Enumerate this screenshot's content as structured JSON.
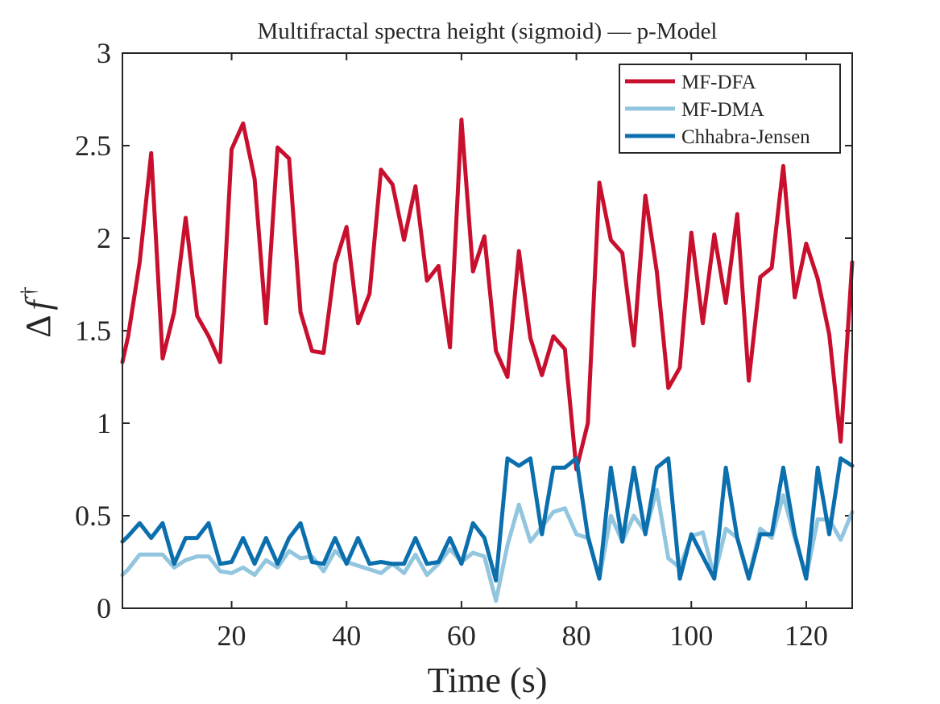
{
  "chart_data": {
    "type": "line",
    "title": "Multifractal spectra height (sigmoid) — p-Model",
    "xlabel": "Time (s)",
    "ylabel_base": "Δ",
    "ylabel_var": "f",
    "ylabel_sup": "†",
    "xlim": [
      1,
      128
    ],
    "ylim": [
      0,
      3
    ],
    "xticks": [
      20,
      40,
      60,
      80,
      100,
      120
    ],
    "yticks": [
      0,
      0.5,
      1,
      1.5,
      2,
      2.5,
      3
    ],
    "ytick_labels": [
      "0",
      "0.5",
      "1",
      "1.5",
      "2",
      "2.5",
      "3"
    ],
    "grid": false,
    "legend_position": "top-right",
    "x": [
      1,
      2,
      4,
      6,
      8,
      10,
      12,
      14,
      16,
      18,
      20,
      22,
      24,
      26,
      28,
      30,
      32,
      34,
      36,
      38,
      40,
      42,
      44,
      46,
      48,
      50,
      52,
      54,
      56,
      58,
      60,
      62,
      64,
      66,
      68,
      70,
      72,
      74,
      76,
      78,
      80,
      82,
      84,
      86,
      88,
      90,
      92,
      94,
      96,
      98,
      100,
      102,
      104,
      106,
      108,
      110,
      112,
      114,
      116,
      118,
      120,
      122,
      124,
      126,
      128
    ],
    "series": [
      {
        "name": "MF-DFA",
        "color": "#c8102e",
        "values": [
          1.33,
          1.47,
          1.87,
          2.46,
          1.35,
          1.6,
          2.11,
          1.58,
          1.47,
          1.33,
          2.48,
          2.62,
          2.32,
          1.54,
          2.49,
          2.43,
          1.6,
          1.39,
          1.38,
          1.86,
          2.06,
          1.54,
          1.7,
          2.37,
          2.29,
          1.99,
          2.28,
          1.77,
          1.85,
          1.41,
          2.64,
          1.82,
          2.01,
          1.39,
          1.25,
          1.93,
          1.46,
          1.26,
          1.47,
          1.4,
          0.75,
          1.0,
          2.3,
          1.99,
          1.92,
          1.42,
          2.23,
          1.82,
          1.19,
          1.3,
          2.03,
          1.54,
          2.02,
          1.65,
          2.13,
          1.23,
          1.79,
          1.84,
          2.39,
          1.68,
          1.97,
          1.78,
          1.48,
          0.9,
          1.87
        ]
      },
      {
        "name": "MF-DMA",
        "color": "#92c5de",
        "values": [
          0.18,
          0.21,
          0.29,
          0.29,
          0.29,
          0.22,
          0.26,
          0.28,
          0.28,
          0.2,
          0.19,
          0.22,
          0.18,
          0.26,
          0.22,
          0.31,
          0.27,
          0.28,
          0.2,
          0.31,
          0.25,
          0.23,
          0.21,
          0.19,
          0.24,
          0.19,
          0.29,
          0.18,
          0.24,
          0.32,
          0.25,
          0.3,
          0.28,
          0.04,
          0.34,
          0.56,
          0.36,
          0.44,
          0.52,
          0.54,
          0.4,
          0.38,
          0.16,
          0.5,
          0.36,
          0.5,
          0.41,
          0.64,
          0.27,
          0.22,
          0.39,
          0.41,
          0.17,
          0.43,
          0.38,
          0.17,
          0.43,
          0.38,
          0.61,
          0.38,
          0.17,
          0.48,
          0.48,
          0.37,
          0.52
        ]
      },
      {
        "name": "Chhabra-Jensen",
        "color": "#0b6fad",
        "values": [
          0.36,
          0.39,
          0.46,
          0.38,
          0.46,
          0.24,
          0.38,
          0.38,
          0.46,
          0.24,
          0.25,
          0.38,
          0.24,
          0.38,
          0.24,
          0.38,
          0.46,
          0.25,
          0.24,
          0.38,
          0.24,
          0.38,
          0.24,
          0.25,
          0.24,
          0.24,
          0.38,
          0.24,
          0.25,
          0.38,
          0.24,
          0.46,
          0.38,
          0.15,
          0.81,
          0.77,
          0.81,
          0.4,
          0.76,
          0.76,
          0.81,
          0.39,
          0.16,
          0.76,
          0.36,
          0.76,
          0.4,
          0.76,
          0.81,
          0.16,
          0.4,
          0.28,
          0.16,
          0.76,
          0.38,
          0.16,
          0.4,
          0.4,
          0.76,
          0.4,
          0.16,
          0.76,
          0.4,
          0.81,
          0.77
        ]
      }
    ]
  }
}
